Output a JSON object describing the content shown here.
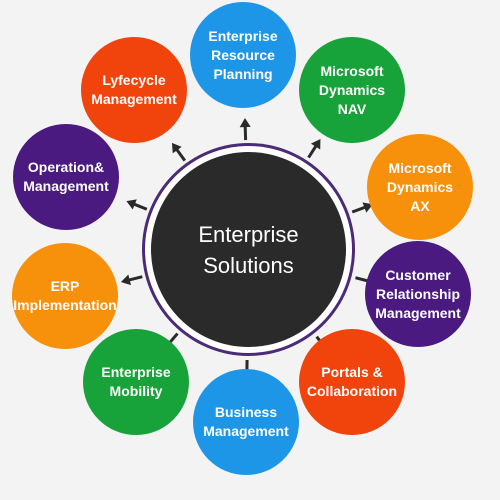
{
  "center": {
    "line1": "Enterprise",
    "line2": "Solutions",
    "color": "#2a2a2a",
    "ring_color": "#4b2b78"
  },
  "nodes": [
    {
      "lines": [
        "Enterprise",
        "Resource",
        "Planning"
      ],
      "color": "#1e96e8"
    },
    {
      "lines": [
        "Microsoft",
        "Dynamics",
        "NAV"
      ],
      "color": "#18a33a"
    },
    {
      "lines": [
        "Microsoft",
        "Dynamics",
        "AX"
      ],
      "color": "#f7910c"
    },
    {
      "lines": [
        "Customer",
        "Relationship",
        "Management"
      ],
      "color": "#4a1a80"
    },
    {
      "lines": [
        "Portals &",
        "Collaboration"
      ],
      "color": "#f0440c"
    },
    {
      "lines": [
        "Business",
        "Management"
      ],
      "color": "#1e96e8"
    },
    {
      "lines": [
        "Enterprise",
        "Mobility"
      ],
      "color": "#18a33a"
    },
    {
      "lines": [
        "ERP",
        "Implementation"
      ],
      "color": "#f7910c"
    },
    {
      "lines": [
        "Operation&",
        "Management"
      ],
      "color": "#4a1a80"
    },
    {
      "lines": [
        "Lyfecycle",
        "Management"
      ],
      "color": "#f0440c"
    }
  ],
  "arrow_color": "#2a2a2a"
}
